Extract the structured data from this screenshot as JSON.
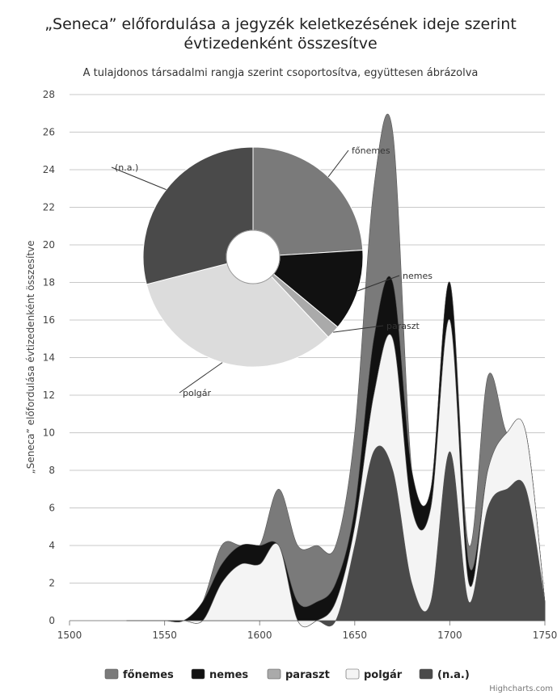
{
  "chart_data": {
    "title_line1": "„Seneca” előfordulása a jegyzék keletkezésének ideje szerint",
    "title_line2": "évtizedenként összesítve",
    "subtitle": "A tulajdonos társadalmi rangja szerint csoportosítva, együttesen ábrázolva",
    "ylabel": "„Seneca” előfordulása évtizedenként összesítve",
    "type": "area",
    "stacked": true,
    "xlim": [
      1500,
      1750
    ],
    "ylim": [
      0,
      28
    ],
    "x_ticks": [
      1500,
      1550,
      1600,
      1650,
      1700,
      1750
    ],
    "y_ticks": [
      0,
      2,
      4,
      6,
      8,
      10,
      12,
      14,
      16,
      18,
      20,
      22,
      24,
      26,
      28
    ],
    "x": [
      1530,
      1540,
      1550,
      1560,
      1570,
      1580,
      1590,
      1600,
      1610,
      1620,
      1630,
      1640,
      1650,
      1660,
      1670,
      1680,
      1690,
      1700,
      1710,
      1720,
      1730,
      1740,
      1750
    ],
    "series": [
      {
        "name": "(n.a.)",
        "values": [
          0,
          0,
          0,
          0,
          0,
          0,
          0,
          0,
          0,
          0,
          0,
          0,
          4,
          9,
          8,
          2,
          1,
          9,
          1,
          6,
          7,
          7,
          1
        ],
        "color": "#4a4a4a"
      },
      {
        "name": "polgár",
        "values": [
          0,
          0,
          0,
          0,
          0,
          2,
          3,
          3,
          4,
          0,
          0,
          1,
          1,
          3,
          7,
          4,
          5,
          7,
          1,
          2,
          3,
          3,
          0
        ],
        "color": "#f4f4f4"
      },
      {
        "name": "paraszt",
        "values": [
          0,
          0,
          0,
          0,
          0,
          0,
          0,
          0,
          0,
          0,
          0,
          0,
          0,
          0,
          0,
          0,
          0,
          0,
          0,
          0,
          0,
          0,
          0
        ],
        "color": "#aaaaaa"
      },
      {
        "name": "nemes",
        "values": [
          0,
          0,
          0,
          0,
          1,
          1,
          1,
          1,
          0,
          1,
          1,
          1,
          1,
          3,
          3,
          2,
          1,
          2,
          1,
          0,
          0,
          0,
          0
        ],
        "color": "#111111"
      },
      {
        "name": "főnemes",
        "values": [
          0,
          0,
          0,
          0,
          0,
          1,
          0,
          0,
          3,
          3,
          3,
          2,
          4,
          8,
          8,
          0,
          0,
          0,
          1,
          5,
          0,
          0,
          0
        ],
        "color": "#7a7a7a"
      }
    ],
    "pie": {
      "slices": [
        {
          "name": "főnemes",
          "value": 24,
          "color": "#7a7a7a"
        },
        {
          "name": "nemes",
          "value": 12,
          "color": "#111111"
        },
        {
          "name": "paraszt",
          "value": 2,
          "color": "#aaaaaa"
        },
        {
          "name": "polgár",
          "value": 33,
          "color": "#dcdcdc"
        },
        {
          "name": "(n.a.)",
          "value": 29,
          "color": "#4a4a4a"
        }
      ]
    },
    "legend": {
      "placement": "bottom",
      "items": [
        {
          "name": "főnemes",
          "color": "#7a7a7a"
        },
        {
          "name": "nemes",
          "color": "#111111"
        },
        {
          "name": "paraszt",
          "color": "#aaaaaa"
        },
        {
          "name": "polgár",
          "color": "#f4f4f4"
        },
        {
          "name": "(n.a.)",
          "color": "#4a4a4a"
        }
      ]
    },
    "credits": "Highcharts.com",
    "grid": true
  }
}
